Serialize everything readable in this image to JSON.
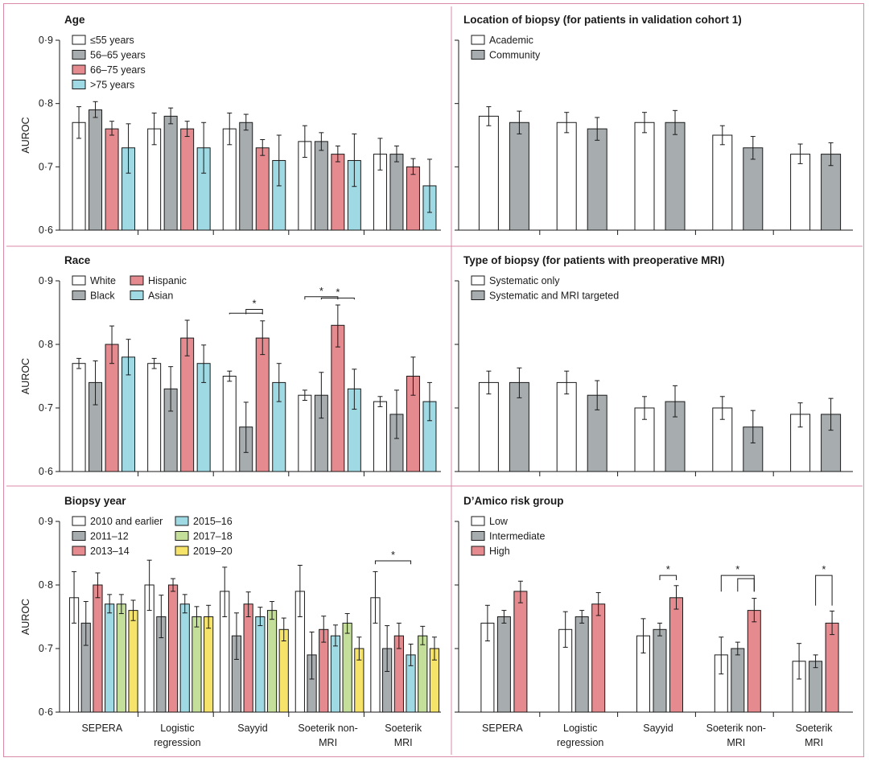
{
  "colors": {
    "frame": "#d98aa8",
    "white": "#ffffff",
    "grey": "#a7acaf",
    "red": "#e58a8e",
    "cyan": "#9fd9e3",
    "green": "#c3df9a",
    "yellow": "#f5e36a",
    "axis": "#1a1a1a"
  },
  "x_categories": [
    [
      "SEPERA"
    ],
    [
      "Logistic",
      "regression"
    ],
    [
      "Sayyid"
    ],
    [
      "Soeterik non-",
      "MRI"
    ],
    [
      "Soeterik",
      "MRI"
    ]
  ],
  "chart_data": [
    {
      "id": "age",
      "type": "bar",
      "title": "Age",
      "ylabel": "AUROC",
      "ylim": [
        0.6,
        0.9
      ],
      "yticks": [
        "0·6",
        "0·7",
        "0·8",
        "0·9"
      ],
      "legend_cols": 1,
      "series": [
        {
          "name": "≤55 years",
          "color": "white",
          "values": [
            0.77,
            0.76,
            0.76,
            0.74,
            0.72
          ],
          "lo": [
            0.745,
            0.735,
            0.735,
            0.715,
            0.695
          ],
          "hi": [
            0.795,
            0.785,
            0.785,
            0.765,
            0.745
          ]
        },
        {
          "name": "56–65 years",
          "color": "grey",
          "values": [
            0.79,
            0.78,
            0.77,
            0.74,
            0.72
          ],
          "lo": [
            0.778,
            0.768,
            0.758,
            0.726,
            0.708
          ],
          "hi": [
            0.803,
            0.793,
            0.783,
            0.754,
            0.733
          ]
        },
        {
          "name": "66–75 years",
          "color": "red",
          "values": [
            0.76,
            0.76,
            0.73,
            0.72,
            0.7
          ],
          "lo": [
            0.75,
            0.748,
            0.718,
            0.708,
            0.688
          ],
          "hi": [
            0.772,
            0.772,
            0.743,
            0.733,
            0.713
          ]
        },
        {
          "name": ">75 years",
          "color": "cyan",
          "values": [
            0.73,
            0.73,
            0.71,
            0.71,
            0.67
          ],
          "lo": [
            0.69,
            0.69,
            0.67,
            0.669,
            0.628
          ],
          "hi": [
            0.768,
            0.77,
            0.75,
            0.752,
            0.712
          ]
        }
      ],
      "brackets": []
    },
    {
      "id": "location",
      "type": "bar",
      "title": "Location of biopsy (for patients in validation cohort 1)",
      "ylabel": "",
      "ylim": [
        0.6,
        0.9
      ],
      "yticks": [
        "",
        "",
        "",
        ""
      ],
      "legend_cols": 1,
      "series": [
        {
          "name": "Academic",
          "color": "white",
          "values": [
            0.78,
            0.77,
            0.77,
            0.75,
            0.72
          ],
          "lo": [
            0.765,
            0.754,
            0.754,
            0.735,
            0.705
          ],
          "hi": [
            0.795,
            0.786,
            0.786,
            0.765,
            0.736
          ]
        },
        {
          "name": "Community",
          "color": "grey",
          "values": [
            0.77,
            0.76,
            0.77,
            0.73,
            0.72
          ],
          "lo": [
            0.752,
            0.742,
            0.751,
            0.712,
            0.702
          ],
          "hi": [
            0.788,
            0.778,
            0.789,
            0.748,
            0.738
          ]
        }
      ],
      "brackets": []
    },
    {
      "id": "race",
      "type": "bar",
      "title": "Race",
      "ylabel": "AUROC",
      "ylim": [
        0.6,
        0.9
      ],
      "yticks": [
        "0·6",
        "0·7",
        "0·8",
        "0·9"
      ],
      "legend_cols": 2,
      "series": [
        {
          "name": "White",
          "color": "white",
          "values": [
            0.77,
            0.77,
            0.75,
            0.72,
            0.71
          ],
          "lo": [
            0.762,
            0.762,
            0.742,
            0.712,
            0.702
          ],
          "hi": [
            0.778,
            0.778,
            0.758,
            0.728,
            0.718
          ]
        },
        {
          "name": "Black",
          "color": "grey",
          "values": [
            0.74,
            0.73,
            0.67,
            0.72,
            0.69
          ],
          "lo": [
            0.705,
            0.695,
            0.63,
            0.684,
            0.652
          ],
          "hi": [
            0.774,
            0.765,
            0.709,
            0.756,
            0.728
          ]
        },
        {
          "name": "Hispanic",
          "color": "red",
          "values": [
            0.8,
            0.81,
            0.81,
            0.83,
            0.75
          ],
          "lo": [
            0.77,
            0.782,
            0.784,
            0.796,
            0.72
          ],
          "hi": [
            0.829,
            0.838,
            0.837,
            0.862,
            0.78
          ]
        },
        {
          "name": "Asian",
          "color": "cyan",
          "values": [
            0.78,
            0.77,
            0.74,
            0.73,
            0.71
          ],
          "lo": [
            0.752,
            0.74,
            0.71,
            0.698,
            0.68
          ],
          "hi": [
            0.808,
            0.799,
            0.77,
            0.761,
            0.74
          ]
        }
      ],
      "brackets": [
        {
          "group": 2,
          "from": 1,
          "to": 2,
          "from_top": 0.845,
          "level": 0.855,
          "star": "*"
        },
        {
          "group": 2,
          "from": 0,
          "to": 2,
          "from_top": 0.845,
          "level": 0.849,
          "star": ""
        },
        {
          "group": 3,
          "from": 0,
          "to": 2,
          "from_top": 0.868,
          "level": 0.875,
          "star": "*"
        },
        {
          "group": 3,
          "from": 1,
          "to": 3,
          "from_top": 0.868,
          "level": 0.873,
          "star": "*"
        }
      ]
    },
    {
      "id": "type",
      "type": "bar",
      "title": "Type of biopsy (for patients with preoperative MRI)",
      "ylabel": "",
      "ylim": [
        0.6,
        0.9
      ],
      "yticks": [
        "",
        "",
        "",
        ""
      ],
      "legend_cols": 1,
      "series": [
        {
          "name": "Systematic only",
          "color": "white",
          "values": [
            0.74,
            0.74,
            0.7,
            0.7,
            0.69
          ],
          "lo": [
            0.722,
            0.722,
            0.682,
            0.682,
            0.67
          ],
          "hi": [
            0.758,
            0.758,
            0.718,
            0.718,
            0.708
          ]
        },
        {
          "name": "Systematic and MRI targeted",
          "color": "grey",
          "values": [
            0.74,
            0.72,
            0.71,
            0.67,
            0.69
          ],
          "lo": [
            0.716,
            0.697,
            0.686,
            0.645,
            0.665
          ],
          "hi": [
            0.763,
            0.743,
            0.735,
            0.696,
            0.715
          ]
        }
      ],
      "brackets": []
    },
    {
      "id": "year",
      "type": "bar",
      "title": "Biopsy year",
      "ylabel": "AUROC",
      "ylim": [
        0.6,
        0.9
      ],
      "yticks": [
        "0·6",
        "0·7",
        "0·8",
        "0·9"
      ],
      "legend_cols": 2,
      "series": [
        {
          "name": "2010 and earlier",
          "color": "white",
          "values": [
            0.78,
            0.8,
            0.79,
            0.79,
            0.78
          ],
          "lo": [
            0.74,
            0.76,
            0.75,
            0.75,
            0.74
          ],
          "hi": [
            0.821,
            0.839,
            0.828,
            0.831,
            0.821
          ]
        },
        {
          "name": "2011–12",
          "color": "grey",
          "values": [
            0.74,
            0.75,
            0.72,
            0.69,
            0.7
          ],
          "lo": [
            0.705,
            0.717,
            0.683,
            0.652,
            0.664
          ],
          "hi": [
            0.774,
            0.784,
            0.756,
            0.726,
            0.736
          ]
        },
        {
          "name": "2013–14",
          "color": "red",
          "values": [
            0.8,
            0.8,
            0.77,
            0.73,
            0.72
          ],
          "lo": [
            0.78,
            0.79,
            0.75,
            0.71,
            0.7
          ],
          "hi": [
            0.819,
            0.81,
            0.789,
            0.751,
            0.74
          ]
        },
        {
          "name": "2015–16",
          "color": "cyan",
          "values": [
            0.77,
            0.77,
            0.75,
            0.72,
            0.69
          ],
          "lo": [
            0.756,
            0.756,
            0.736,
            0.704,
            0.673
          ],
          "hi": [
            0.785,
            0.785,
            0.765,
            0.737,
            0.707
          ]
        },
        {
          "name": "2017–18",
          "color": "green",
          "values": [
            0.77,
            0.75,
            0.76,
            0.74,
            0.72
          ],
          "lo": [
            0.755,
            0.734,
            0.746,
            0.724,
            0.706
          ],
          "hi": [
            0.785,
            0.766,
            0.774,
            0.755,
            0.735
          ]
        },
        {
          "name": "2019–20",
          "color": "yellow",
          "values": [
            0.76,
            0.75,
            0.73,
            0.7,
            0.7
          ],
          "lo": [
            0.744,
            0.732,
            0.712,
            0.682,
            0.682
          ],
          "hi": [
            0.776,
            0.768,
            0.748,
            0.718,
            0.718
          ]
        }
      ],
      "brackets": [
        {
          "group": 4,
          "from": 0,
          "to": 3,
          "from_top": 0.83,
          "level": 0.838,
          "star": "*"
        }
      ]
    },
    {
      "id": "damico",
      "type": "bar",
      "title": "D’Amico risk group",
      "ylabel": "",
      "ylim": [
        0.6,
        0.9
      ],
      "yticks": [
        "",
        "",
        "",
        ""
      ],
      "legend_cols": 1,
      "series": [
        {
          "name": "Low",
          "color": "white",
          "values": [
            0.74,
            0.73,
            0.72,
            0.69,
            0.68
          ],
          "lo": [
            0.712,
            0.702,
            0.693,
            0.66,
            0.652
          ],
          "hi": [
            0.768,
            0.758,
            0.747,
            0.718,
            0.708
          ]
        },
        {
          "name": "Intermediate",
          "color": "grey",
          "values": [
            0.75,
            0.75,
            0.73,
            0.7,
            0.68
          ],
          "lo": [
            0.74,
            0.74,
            0.72,
            0.69,
            0.67
          ],
          "hi": [
            0.76,
            0.76,
            0.74,
            0.71,
            0.69
          ]
        },
        {
          "name": "High",
          "color": "red",
          "values": [
            0.79,
            0.77,
            0.78,
            0.76,
            0.74
          ],
          "lo": [
            0.772,
            0.752,
            0.762,
            0.742,
            0.722
          ],
          "hi": [
            0.806,
            0.788,
            0.799,
            0.779,
            0.759
          ]
        }
      ],
      "brackets": [
        {
          "group": 2,
          "from": 1,
          "to": 2,
          "from_top": 0.805,
          "level": 0.815,
          "star": "*"
        },
        {
          "group": 3,
          "from": 0,
          "to": 2,
          "from_top": 0.787,
          "level": 0.815,
          "star": "*"
        },
        {
          "group": 3,
          "from": 1,
          "to": 2,
          "from_top": 0.787,
          "level": 0.81,
          "star": ""
        },
        {
          "group": 4,
          "from": 1,
          "to": 2,
          "from_top": 0.765,
          "level": 0.815,
          "star": "*"
        }
      ]
    }
  ]
}
